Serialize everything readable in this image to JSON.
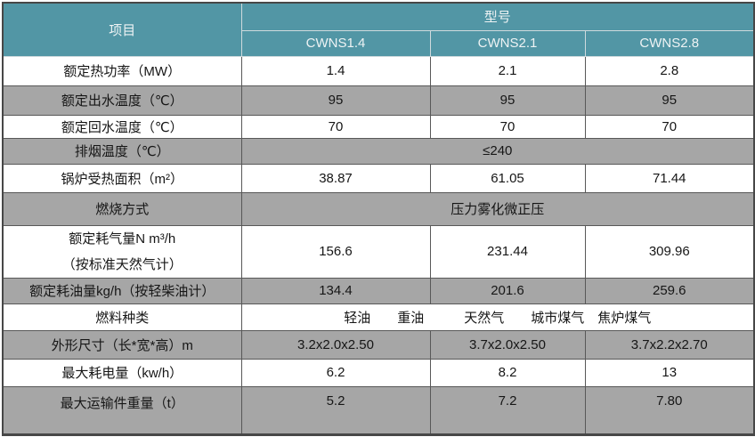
{
  "table": {
    "header": {
      "item_label": "项目",
      "model_label": "型号",
      "models": [
        "CWNS1.4",
        "CWNS2.1",
        "CWNS2.8"
      ]
    },
    "rows": [
      {
        "label": "额定热功率（MW）",
        "values": [
          "1.4",
          "2.1",
          "2.8"
        ]
      },
      {
        "label": "额定出水温度（℃）",
        "values": [
          "95",
          "95",
          "95"
        ]
      },
      {
        "label": "额定回水温度（℃）",
        "values": [
          "70",
          "70",
          "70"
        ]
      },
      {
        "label": "排烟温度（℃）",
        "span_value": "≤240"
      },
      {
        "label": "锅炉受热面积（m²）",
        "values": [
          "38.87",
          "61.05",
          "71.44"
        ]
      },
      {
        "label": "燃烧方式",
        "span_value": "压力雾化微正压"
      },
      {
        "label": "额定耗气量N m³/h",
        "label2": "（按标准天然气计）",
        "values": [
          "156.6",
          "231.44",
          "309.96"
        ]
      },
      {
        "label": "额定耗油量kg/h（按轻柴油计）",
        "values": [
          "134.4",
          "201.6",
          "259.6"
        ]
      },
      {
        "label": "燃料种类",
        "span_value": "轻油　　重油　　　天然气　　城市煤气　焦炉煤气"
      },
      {
        "label": "外形尺寸（长*宽*高）m",
        "values": [
          "3.2x2.0x2.50",
          "3.7x2.0x2.50",
          "3.7x2.2x2.70"
        ]
      },
      {
        "label": "最大耗电量（kw/h）",
        "values": [
          "6.2",
          "8.2",
          "13"
        ]
      },
      {
        "label": "最大运输件重量（t）",
        "values": [
          "5.2",
          "7.2",
          "7.80"
        ]
      }
    ],
    "colors": {
      "header_teal": "#5296a5",
      "header_text": "#eef3f4",
      "row_gray": "#a6a6a6",
      "row_white": "#ffffff",
      "border_dark": "#585858",
      "border_light": "#cfdadd"
    }
  }
}
